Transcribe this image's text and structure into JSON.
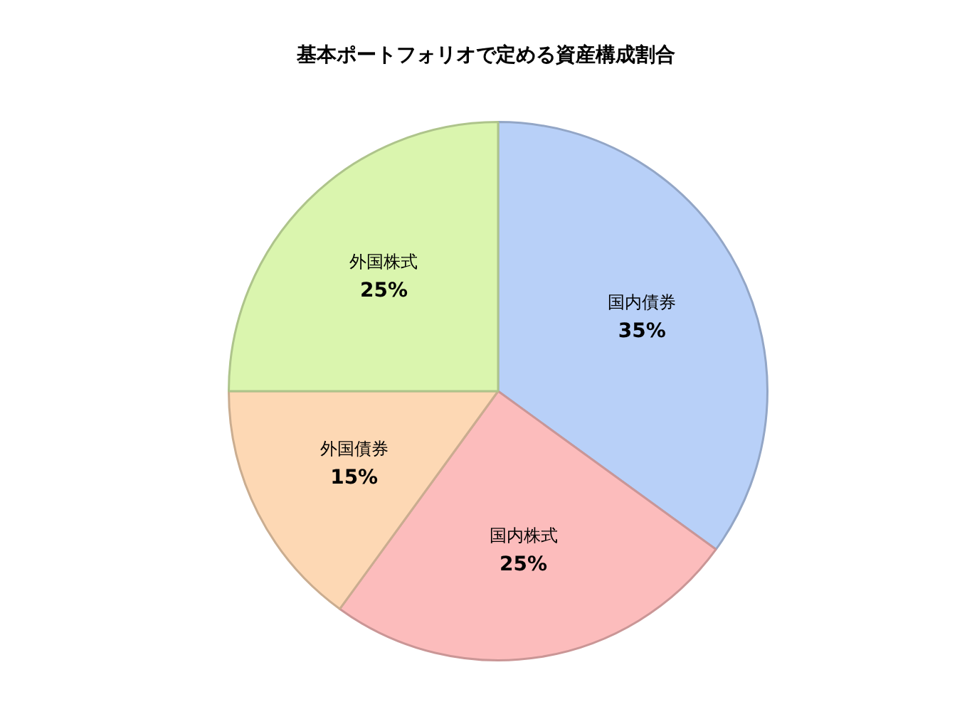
{
  "chart_data": {
    "type": "pie",
    "title": "基本ポートフォリオで定める資産構成割合",
    "categories": [
      "国内債券",
      "国内株式",
      "外国債券",
      "外国株式"
    ],
    "values": [
      35,
      25,
      15,
      25
    ],
    "colors": [
      "#b8d0f8",
      "#fcbcbc",
      "#fdd8b4",
      "#daf5ae"
    ],
    "value_labels": [
      "35%",
      "25%",
      "15%",
      "25%"
    ],
    "legend": false
  }
}
